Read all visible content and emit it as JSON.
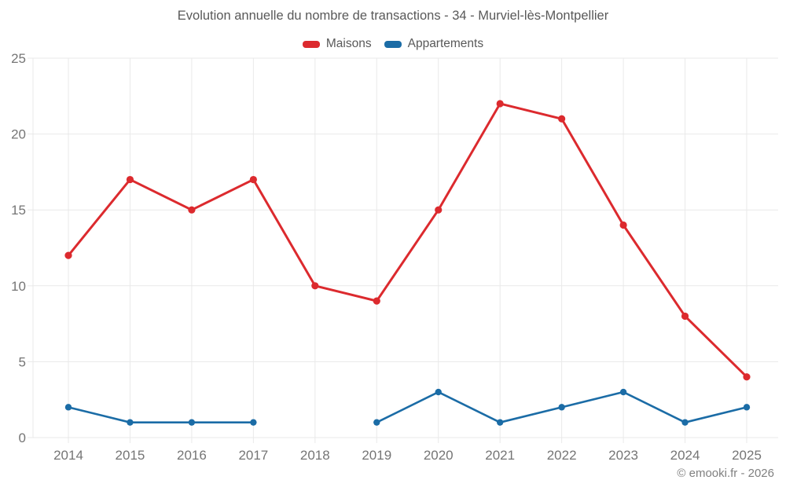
{
  "title": "Evolution annuelle du nombre de transactions - 34 - Murviel-lès-Montpellier",
  "legend": {
    "items": [
      {
        "label": "Maisons",
        "color": "#dc2a2e"
      },
      {
        "label": "Appartements",
        "color": "#1b6ca6"
      }
    ]
  },
  "copyright": "© emooki.fr - 2026",
  "chart_data": {
    "type": "line",
    "title": "Evolution annuelle du nombre de transactions - 34 - Murviel-lès-Montpellier",
    "categories": [
      "2014",
      "2015",
      "2016",
      "2017",
      "2018",
      "2019",
      "2020",
      "2021",
      "2022",
      "2023",
      "2024",
      "2025"
    ],
    "series": [
      {
        "name": "Maisons",
        "color": "#dc2a2e",
        "values": [
          12,
          17,
          15,
          17,
          10,
          9,
          15,
          22,
          21,
          14,
          8,
          4
        ]
      },
      {
        "name": "Appartements",
        "color": "#1b6ca6",
        "values": [
          2,
          1,
          1,
          1,
          null,
          1,
          3,
          1,
          2,
          3,
          1,
          2
        ]
      }
    ],
    "xlabel": "",
    "ylabel": "",
    "ylim": [
      0,
      25
    ],
    "yticks": [
      0,
      5,
      10,
      15,
      20,
      25
    ],
    "grid": true,
    "legend_position": "top",
    "axis_label_color": "#757575",
    "grid_color": "#e9e9e9"
  }
}
